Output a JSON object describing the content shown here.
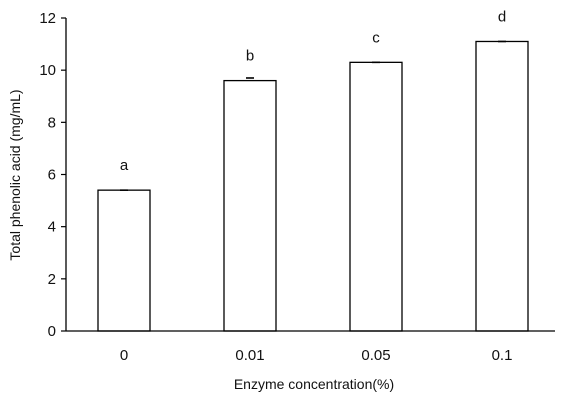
{
  "chart_data": {
    "type": "bar",
    "title": "",
    "xlabel": "Enzyme concentration(%)",
    "ylabel": "Total phenolic acid (mg/mL)",
    "categories": [
      "0",
      "0.01",
      "0.05",
      "0.1"
    ],
    "values": [
      5.4,
      9.6,
      10.3,
      11.1
    ],
    "errors": [
      0.0,
      0.1,
      0.0,
      0.0
    ],
    "significance_labels": [
      "a",
      "b",
      "c",
      "d"
    ],
    "ylim": [
      0,
      12
    ],
    "yticks": [
      "0",
      "2",
      "4",
      "6",
      "8",
      "10",
      "12"
    ],
    "grid": false,
    "legend": "none",
    "colors": {
      "bar_fill": "#ffffff",
      "bar_stroke": "#000000",
      "axis": "#000000",
      "text": "#111111"
    }
  }
}
